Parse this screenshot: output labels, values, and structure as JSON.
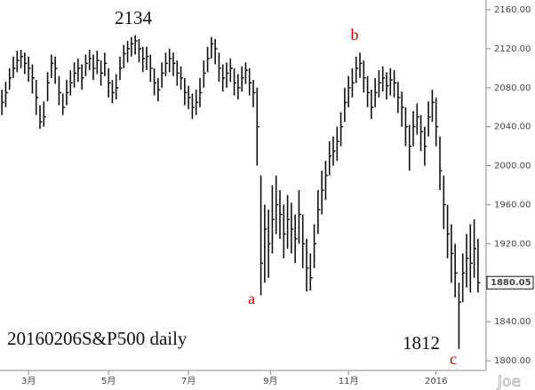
{
  "chart_data": {
    "type": "hlc",
    "title": "20160206S&P500 daily",
    "watermark": "Joe",
    "wave_labels": [
      "a",
      "b",
      "c"
    ],
    "color": "#111111",
    "label_color": "#cc0000",
    "high": [
      2078,
      2086,
      2100,
      2112,
      2118,
      2119,
      2116,
      2112,
      2104,
      2088,
      2062,
      2066,
      2096,
      2114,
      2112,
      2092,
      2074,
      2088,
      2098,
      2106,
      2110,
      2104,
      2114,
      2119,
      2114,
      2118,
      2108,
      2116,
      2100,
      2088,
      2094,
      2112,
      2124,
      2128,
      2132,
      2134,
      2130,
      2122,
      2122,
      2114,
      2100,
      2090,
      2106,
      2116,
      2120,
      2116,
      2108,
      2102,
      2090,
      2082,
      2074,
      2078,
      2090,
      2108,
      2122,
      2132,
      2130,
      2116,
      2104,
      2106,
      2110,
      2100,
      2094,
      2102,
      2106,
      2100,
      2088,
      2080,
      1990,
      1960,
      1955,
      1980,
      1990,
      1975,
      1960,
      1970,
      1962,
      1950,
      1975,
      1950,
      1925,
      1910,
      1940,
      1975,
      1995,
      2005,
      2025,
      2030,
      2040,
      2055,
      2080,
      2092,
      2100,
      2112,
      2116,
      2108,
      2092,
      2078,
      2090,
      2098,
      2102,
      2096,
      2100,
      2098,
      2086,
      2076,
      2060,
      2042,
      2056,
      2064,
      2052,
      2040,
      2066,
      2078,
      2070,
      2030,
      1990,
      1960,
      1940,
      1920,
      1880,
      1910,
      1930,
      1940,
      1945,
      1925
    ],
    "low": [
      2052,
      2060,
      2078,
      2090,
      2096,
      2100,
      2094,
      2086,
      2074,
      2052,
      2038,
      2040,
      2066,
      2090,
      2084,
      2062,
      2052,
      2062,
      2072,
      2080,
      2086,
      2078,
      2092,
      2098,
      2088,
      2094,
      2082,
      2092,
      2070,
      2064,
      2068,
      2088,
      2100,
      2106,
      2112,
      2114,
      2106,
      2096,
      2098,
      2086,
      2072,
      2066,
      2080,
      2092,
      2096,
      2092,
      2082,
      2078,
      2062,
      2058,
      2048,
      2052,
      2060,
      2080,
      2096,
      2110,
      2104,
      2086,
      2076,
      2080,
      2086,
      2072,
      2068,
      2076,
      2084,
      2072,
      2060,
      2000,
      1867,
      1880,
      1885,
      1910,
      1930,
      1925,
      1905,
      1915,
      1910,
      1900,
      1920,
      1895,
      1871,
      1872,
      1895,
      1930,
      1950,
      1965,
      1990,
      2000,
      2005,
      2020,
      2045,
      2060,
      2070,
      2085,
      2090,
      2075,
      2060,
      2048,
      2060,
      2070,
      2076,
      2068,
      2072,
      2070,
      2054,
      2040,
      2020,
      1995,
      2020,
      2032,
      2015,
      2000,
      2030,
      2045,
      2020,
      1975,
      1935,
      1905,
      1880,
      1865,
      1812,
      1860,
      1875,
      1870,
      1885,
      1870
    ],
    "close": [
      2065,
      2075,
      2090,
      2100,
      2108,
      2112,
      2105,
      2100,
      2090,
      2070,
      2045,
      2050,
      2085,
      2105,
      2100,
      2075,
      2060,
      2075,
      2085,
      2095,
      2100,
      2090,
      2105,
      2110,
      2100,
      2108,
      2095,
      2105,
      2085,
      2075,
      2080,
      2100,
      2115,
      2120,
      2125,
      2128,
      2120,
      2110,
      2112,
      2100,
      2085,
      2078,
      2095,
      2105,
      2110,
      2105,
      2095,
      2090,
      2075,
      2070,
      2060,
      2065,
      2075,
      2095,
      2110,
      2125,
      2120,
      2100,
      2090,
      2095,
      2100,
      2085,
      2080,
      2090,
      2098,
      2085,
      2075,
      2040,
      1900,
      1935,
      1920,
      1945,
      1960,
      1950,
      1930,
      1945,
      1935,
      1925,
      1950,
      1920,
      1895,
      1885,
      1920,
      1955,
      1975,
      1990,
      2010,
      2015,
      2025,
      2040,
      2065,
      2080,
      2085,
      2100,
      2105,
      2090,
      2075,
      2060,
      2075,
      2085,
      2090,
      2082,
      2088,
      2085,
      2070,
      2060,
      2040,
      2020,
      2040,
      2050,
      2035,
      2020,
      2050,
      2065,
      2040,
      1995,
      1960,
      1930,
      1910,
      1890,
      1860,
      1890,
      1905,
      1900,
      1915,
      1880.05
    ],
    "xlim": [
      -0.5,
      125.5
    ],
    "xticks": [
      {
        "value": 7,
        "label": "3月"
      },
      {
        "value": 28,
        "label": "5月"
      },
      {
        "value": 49,
        "label": "7月"
      },
      {
        "value": 70.5,
        "label": "9月"
      },
      {
        "value": 91,
        "label": "11月"
      },
      {
        "value": 114,
        "label": "2016"
      }
    ],
    "ylim": [
      1790,
      2170
    ],
    "yticks": [
      {
        "value": 1800,
        "label": "1800.00"
      },
      {
        "value": 1840,
        "label": "1840.00"
      },
      {
        "value": 1880,
        "label": "1880.00"
      },
      {
        "value": 1920,
        "label": "1920.00"
      },
      {
        "value": 1960,
        "label": "1960.00"
      },
      {
        "value": 2000,
        "label": "2000.00"
      },
      {
        "value": 2040,
        "label": "2040.00"
      },
      {
        "value": 2080,
        "label": "2080.00"
      },
      {
        "value": 2120,
        "label": "2120.00"
      },
      {
        "value": 2160,
        "label": "2160.00"
      }
    ]
  }
}
